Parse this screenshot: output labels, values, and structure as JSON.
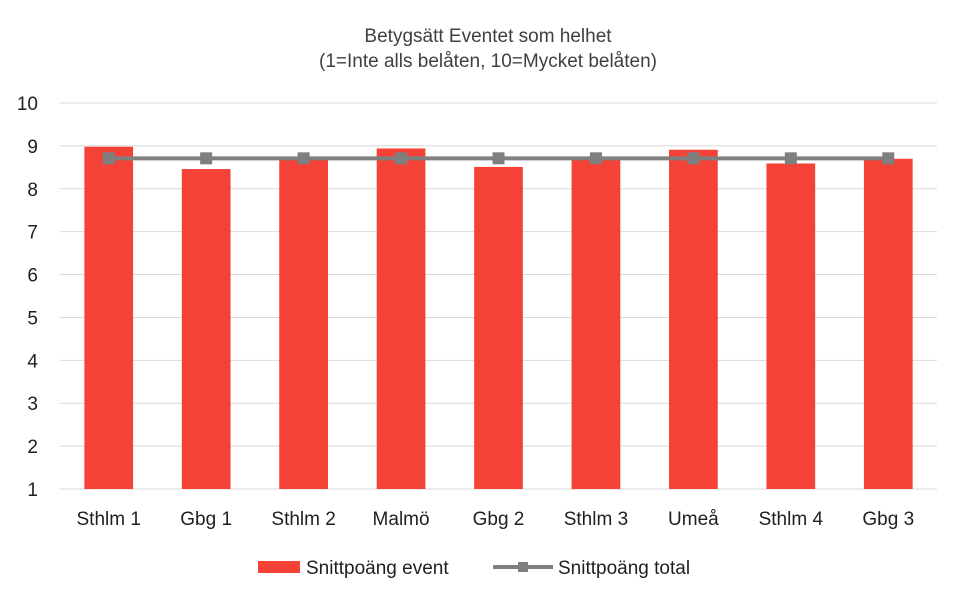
{
  "chart_data": {
    "type": "bar",
    "title": "Betygsätt Eventet som helhet",
    "subtitle": "(1=Inte alls belåten, 10=Mycket belåten)",
    "categories": [
      "Sthlm 1",
      "Gbg 1",
      "Sthlm 2",
      "Malmö",
      "Gbg 2",
      "Sthlm 3",
      "Umeå",
      "Sthlm 4",
      "Gbg 3"
    ],
    "series": [
      {
        "name": "Snittpoäng event",
        "kind": "bar",
        "color": "#f44336",
        "values": [
          8.98,
          8.46,
          8.72,
          8.94,
          8.51,
          8.72,
          8.91,
          8.59,
          8.7
        ]
      },
      {
        "name": "Snittpoäng total",
        "kind": "line",
        "color": "#7f7f7f",
        "values": [
          8.71,
          8.71,
          8.71,
          8.71,
          8.71,
          8.71,
          8.71,
          8.71,
          8.71
        ]
      }
    ],
    "yticks": [
      "1",
      "2",
      "3",
      "4",
      "5",
      "6",
      "7",
      "8",
      "9",
      "10"
    ],
    "ylim": [
      1,
      10
    ],
    "grid": true,
    "legend": "bottom"
  }
}
